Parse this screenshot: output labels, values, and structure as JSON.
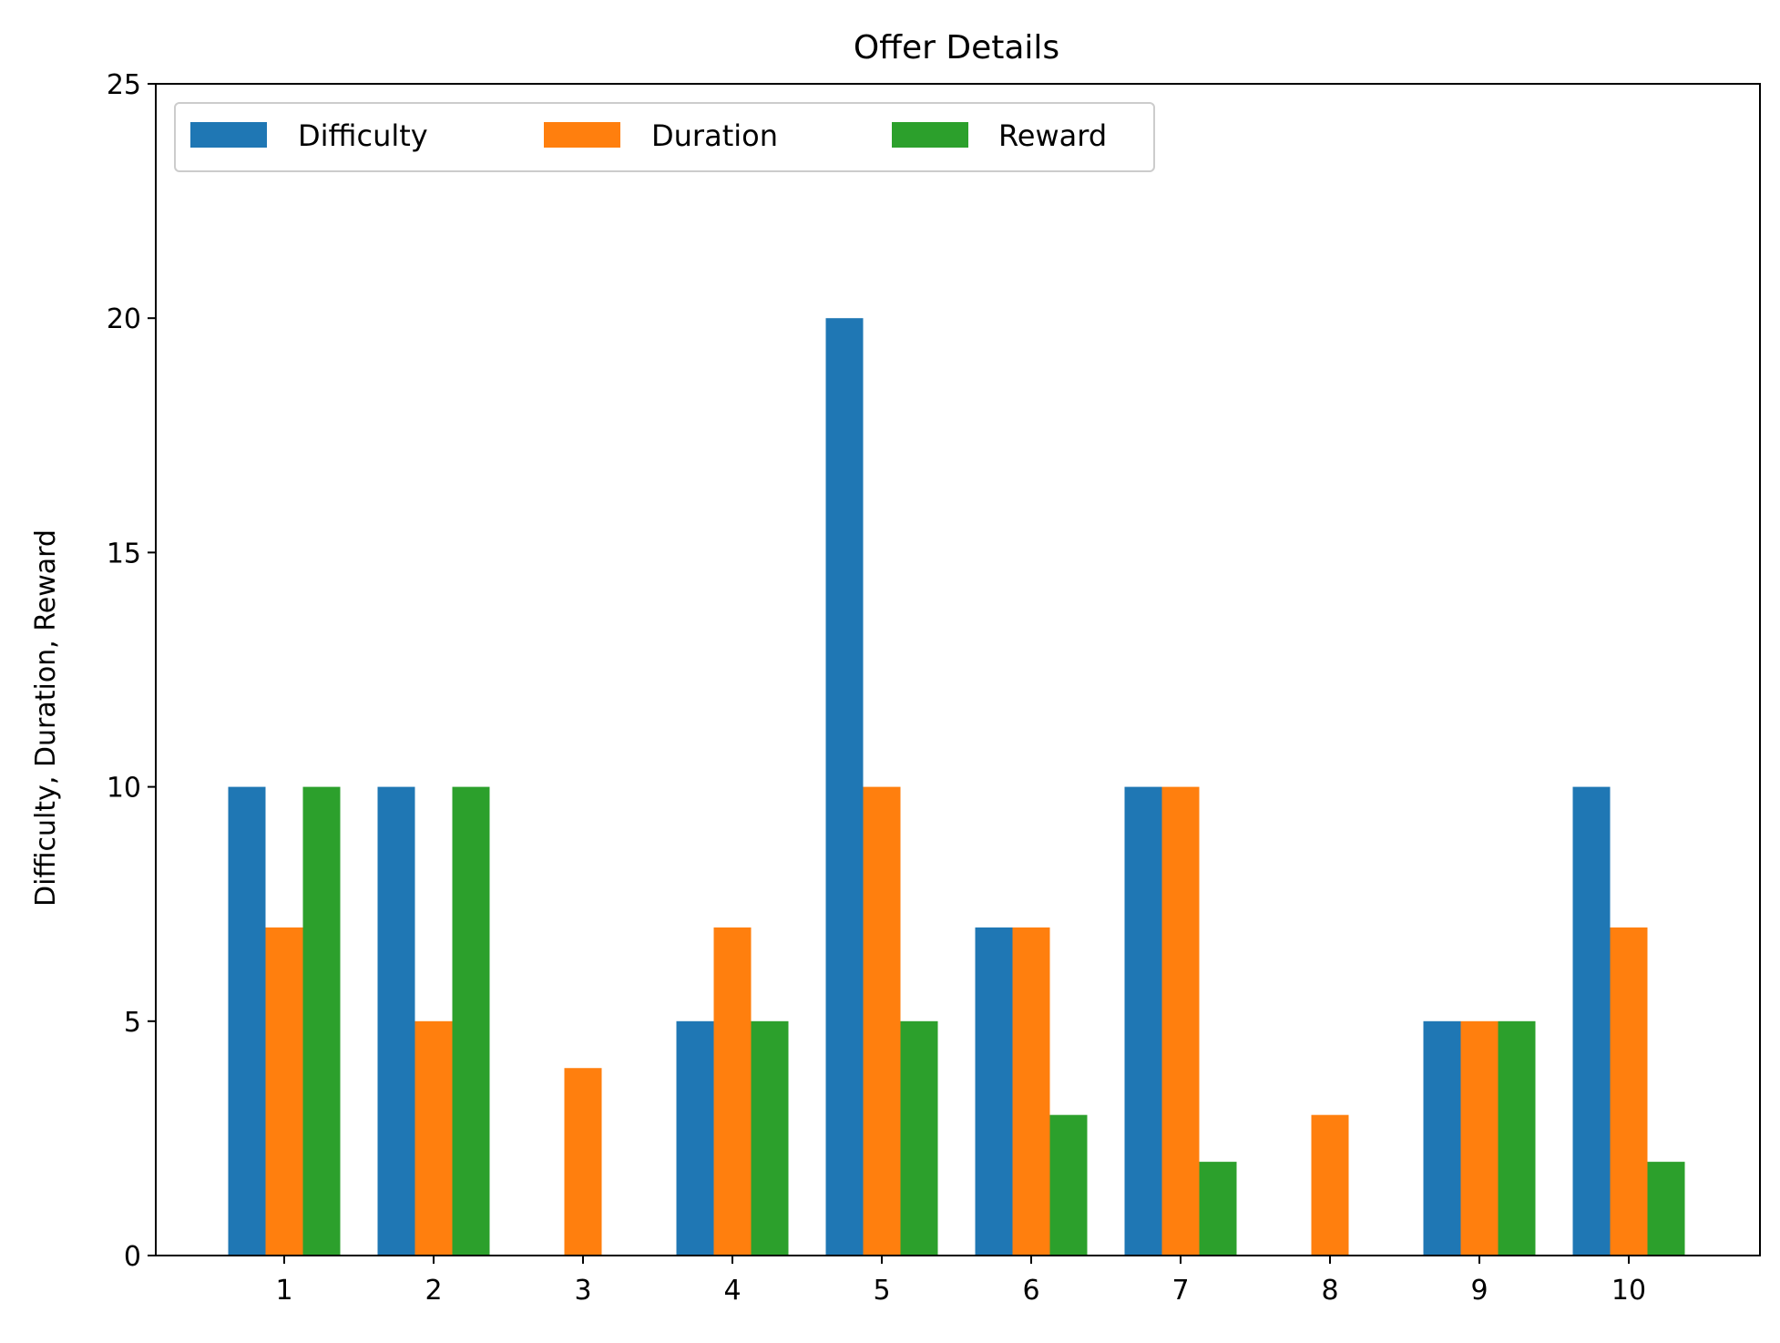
{
  "chart_data": {
    "type": "bar",
    "title": "Offer Details",
    "xlabel": "",
    "ylabel": "Difficulty, Duration, Reward",
    "categories": [
      "1",
      "2",
      "3",
      "4",
      "5",
      "6",
      "7",
      "8",
      "9",
      "10"
    ],
    "series": [
      {
        "name": "Difficulty",
        "color": "#1f77b4",
        "values": [
          10,
          10,
          0,
          5,
          20,
          7,
          10,
          0,
          5,
          10
        ]
      },
      {
        "name": "Duration",
        "color": "#ff7f0e",
        "values": [
          7,
          5,
          4,
          7,
          10,
          7,
          10,
          3,
          5,
          7
        ]
      },
      {
        "name": "Reward",
        "color": "#2ca02c",
        "values": [
          10,
          10,
          0,
          5,
          5,
          3,
          2,
          0,
          5,
          2
        ]
      }
    ],
    "ylim": [
      0,
      25
    ],
    "yticks": [
      "0",
      "5",
      "10",
      "15",
      "20",
      "25"
    ],
    "grid": false,
    "legend_position": "top-left"
  }
}
